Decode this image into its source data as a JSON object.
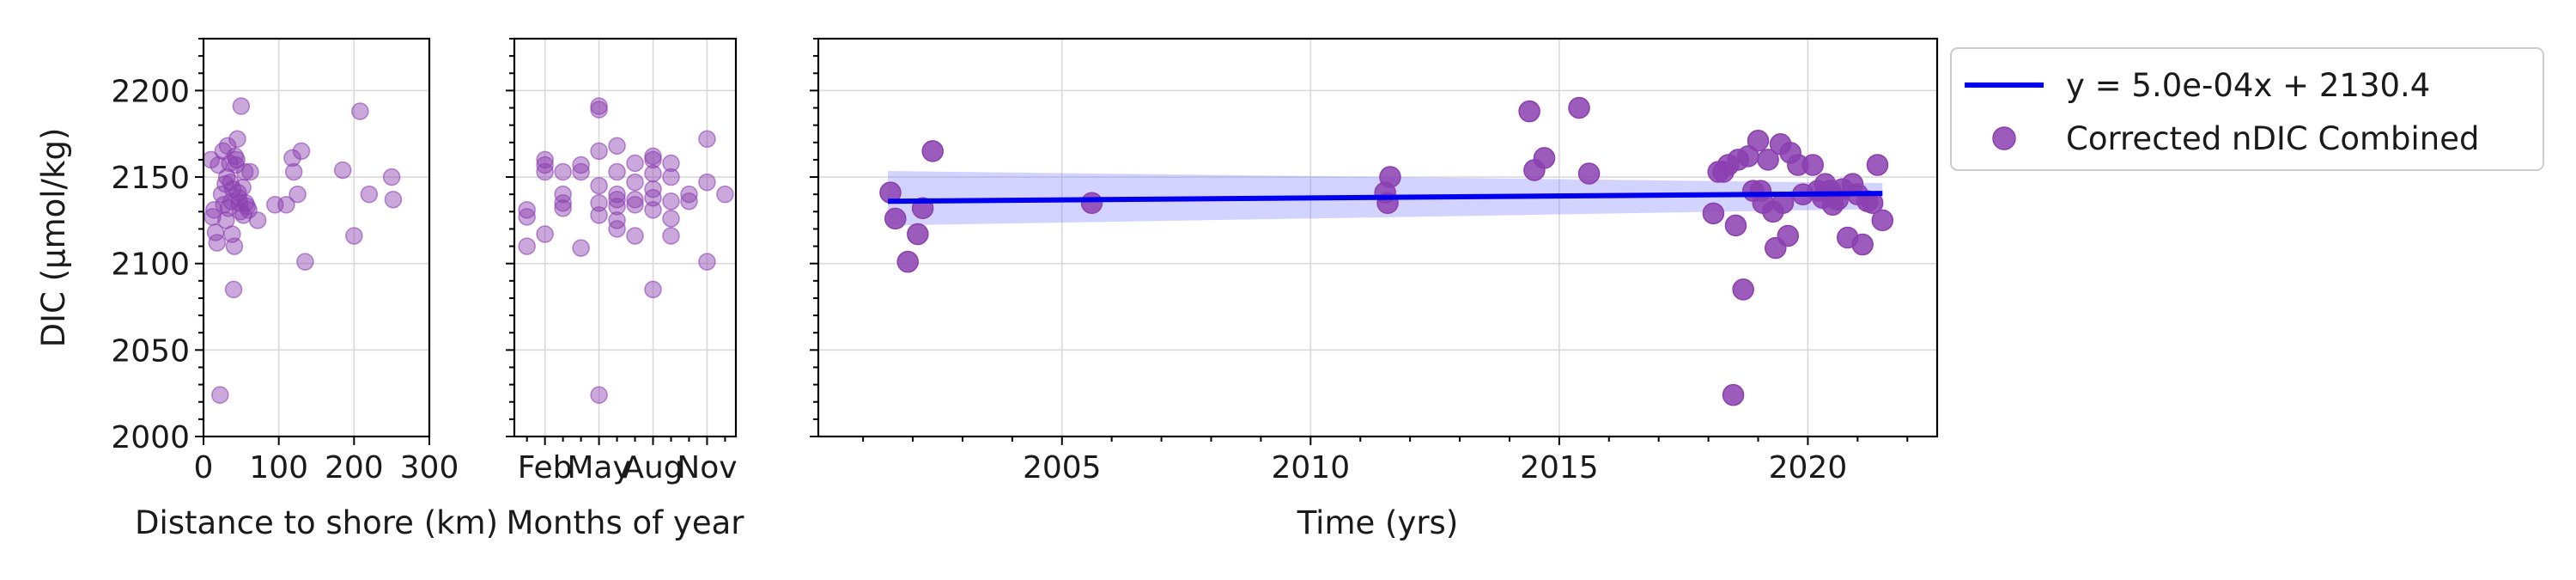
{
  "chart_data": [
    {
      "id": "distance",
      "type": "scatter",
      "xlabel": "Distance to shore (km)",
      "ylabel": "DIC (µmol/kg)",
      "xlim": [
        0,
        300
      ],
      "ylim": [
        2000,
        2230
      ],
      "xticks": [
        0,
        100,
        200,
        300
      ],
      "yticks": [
        2000,
        2050,
        2100,
        2150,
        2200
      ],
      "grid": true,
      "marker_color": "#8b3fb0",
      "marker_alpha": 0.45,
      "points": [
        [
          10,
          2160
        ],
        [
          12,
          2127
        ],
        [
          14,
          2131
        ],
        [
          16,
          2118
        ],
        [
          18,
          2112
        ],
        [
          20,
          2157
        ],
        [
          22,
          2024
        ],
        [
          24,
          2140
        ],
        [
          26,
          2165
        ],
        [
          27,
          2134
        ],
        [
          29,
          2146
        ],
        [
          30,
          2125
        ],
        [
          31,
          2150
        ],
        [
          32,
          2168
        ],
        [
          33,
          2132
        ],
        [
          35,
          2158
        ],
        [
          36,
          2147
        ],
        [
          37,
          2136
        ],
        [
          38,
          2117
        ],
        [
          39,
          2143
        ],
        [
          40,
          2085
        ],
        [
          41,
          2110
        ],
        [
          42,
          2162
        ],
        [
          43,
          2157
        ],
        [
          44,
          2160
        ],
        [
          45,
          2172
        ],
        [
          46,
          2141
        ],
        [
          47,
          2138
        ],
        [
          48,
          2135
        ],
        [
          49,
          2130
        ],
        [
          50,
          2191
        ],
        [
          52,
          2144
        ],
        [
          53,
          2128
        ],
        [
          55,
          2153
        ],
        [
          56,
          2135
        ],
        [
          58,
          2133
        ],
        [
          60,
          2131
        ],
        [
          62,
          2153
        ],
        [
          72,
          2125
        ],
        [
          95,
          2134
        ],
        [
          110,
          2134
        ],
        [
          118,
          2161
        ],
        [
          120,
          2153
        ],
        [
          125,
          2140
        ],
        [
          130,
          2165
        ],
        [
          135,
          2101
        ],
        [
          185,
          2154
        ],
        [
          200,
          2116
        ],
        [
          208,
          2188
        ],
        [
          220,
          2140
        ],
        [
          250,
          2150
        ],
        [
          252,
          2137
        ]
      ]
    },
    {
      "id": "months",
      "type": "scatter",
      "xlabel": "Months of year",
      "ylabel": "",
      "xlim": [
        0.3,
        12.6
      ],
      "ylim": [
        2000,
        2230
      ],
      "xticks": [
        2,
        5,
        8,
        11
      ],
      "xticklabels": [
        "Feb",
        "May",
        "Aug",
        "Nov"
      ],
      "grid": true,
      "marker_color": "#8b3fb0",
      "marker_alpha": 0.45,
      "points": [
        [
          1.0,
          2131
        ],
        [
          1.0,
          2127
        ],
        [
          1.0,
          2110
        ],
        [
          2.0,
          2157
        ],
        [
          2.0,
          2153
        ],
        [
          2.0,
          2160
        ],
        [
          2.0,
          2117
        ],
        [
          3.0,
          2153
        ],
        [
          3.0,
          2135
        ],
        [
          3.0,
          2140
        ],
        [
          3.0,
          2132
        ],
        [
          4.0,
          2153
        ],
        [
          4.0,
          2157
        ],
        [
          4.0,
          2109
        ],
        [
          5.0,
          2189
        ],
        [
          5.0,
          2191
        ],
        [
          5.0,
          2165
        ],
        [
          5.0,
          2145
        ],
        [
          5.0,
          2135
        ],
        [
          5.0,
          2128
        ],
        [
          5.0,
          2024
        ],
        [
          6.0,
          2168
        ],
        [
          6.0,
          2153
        ],
        [
          6.0,
          2140
        ],
        [
          6.0,
          2137
        ],
        [
          6.0,
          2133
        ],
        [
          6.0,
          2125
        ],
        [
          6.0,
          2120
        ],
        [
          7.0,
          2158
        ],
        [
          7.0,
          2147
        ],
        [
          7.0,
          2134
        ],
        [
          7.0,
          2116
        ],
        [
          7.0,
          2137
        ],
        [
          8.0,
          2162
        ],
        [
          8.0,
          2160
        ],
        [
          8.0,
          2152
        ],
        [
          8.0,
          2143
        ],
        [
          8.0,
          2138
        ],
        [
          8.0,
          2131
        ],
        [
          8.0,
          2085
        ],
        [
          9.0,
          2158
        ],
        [
          9.0,
          2150
        ],
        [
          9.0,
          2136
        ],
        [
          9.0,
          2126
        ],
        [
          9.0,
          2116
        ],
        [
          10.0,
          2140
        ],
        [
          10.0,
          2136
        ],
        [
          11.0,
          2172
        ],
        [
          11.0,
          2147
        ],
        [
          11.0,
          2101
        ],
        [
          12.0,
          2140
        ]
      ]
    },
    {
      "id": "time",
      "type": "scatter",
      "xlabel": "Time (yrs)",
      "ylabel": "",
      "xlim": [
        2000.1,
        2022.6
      ],
      "ylim": [
        2000,
        2230
      ],
      "xticks": [
        2005,
        2010,
        2015,
        2020
      ],
      "grid": true,
      "marker_color": "#8b3fb0",
      "marker_alpha": 0.85,
      "legend_position": "outside-top-right",
      "fit_line": {
        "label": "y = 5.0e-04x + 2130.4",
        "x": [
          2001.5,
          2021.5
        ],
        "y": [
          2136.0,
          2140.5
        ],
        "color": "#0000ee",
        "ci_upper": [
          2153.5,
          2146.5
        ],
        "ci_lower": [
          2122.0,
          2131.5
        ],
        "ci_color": "#8080ff"
      },
      "series_label": "Corrected nDIC Combined",
      "points": [
        [
          2001.55,
          2141
        ],
        [
          2001.65,
          2126
        ],
        [
          2001.9,
          2101
        ],
        [
          2002.1,
          2117
        ],
        [
          2002.2,
          2132
        ],
        [
          2002.4,
          2165
        ],
        [
          2005.6,
          2135
        ],
        [
          2011.5,
          2141
        ],
        [
          2011.55,
          2135
        ],
        [
          2011.6,
          2150
        ],
        [
          2014.4,
          2188
        ],
        [
          2014.5,
          2154
        ],
        [
          2014.7,
          2161
        ],
        [
          2015.4,
          2190
        ],
        [
          2015.6,
          2152
        ],
        [
          2018.1,
          2129
        ],
        [
          2018.2,
          2153
        ],
        [
          2018.3,
          2153
        ],
        [
          2018.4,
          2157
        ],
        [
          2018.5,
          2024
        ],
        [
          2018.55,
          2122
        ],
        [
          2018.6,
          2160
        ],
        [
          2018.7,
          2085
        ],
        [
          2018.8,
          2162
        ],
        [
          2018.9,
          2142
        ],
        [
          2019.0,
          2171
        ],
        [
          2019.05,
          2142
        ],
        [
          2019.1,
          2135
        ],
        [
          2019.2,
          2160
        ],
        [
          2019.3,
          2130
        ],
        [
          2019.35,
          2109
        ],
        [
          2019.45,
          2169
        ],
        [
          2019.5,
          2135
        ],
        [
          2019.6,
          2116
        ],
        [
          2019.65,
          2164
        ],
        [
          2019.8,
          2157
        ],
        [
          2019.9,
          2140
        ],
        [
          2020.1,
          2157
        ],
        [
          2020.2,
          2142
        ],
        [
          2020.3,
          2138
        ],
        [
          2020.35,
          2146
        ],
        [
          2020.45,
          2142
        ],
        [
          2020.5,
          2134
        ],
        [
          2020.6,
          2137
        ],
        [
          2020.7,
          2143
        ],
        [
          2020.8,
          2115
        ],
        [
          2020.9,
          2146
        ],
        [
          2021.0,
          2140
        ],
        [
          2021.1,
          2111
        ],
        [
          2021.2,
          2136
        ],
        [
          2021.3,
          2135
        ],
        [
          2021.4,
          2157
        ],
        [
          2021.5,
          2125
        ]
      ]
    }
  ]
}
